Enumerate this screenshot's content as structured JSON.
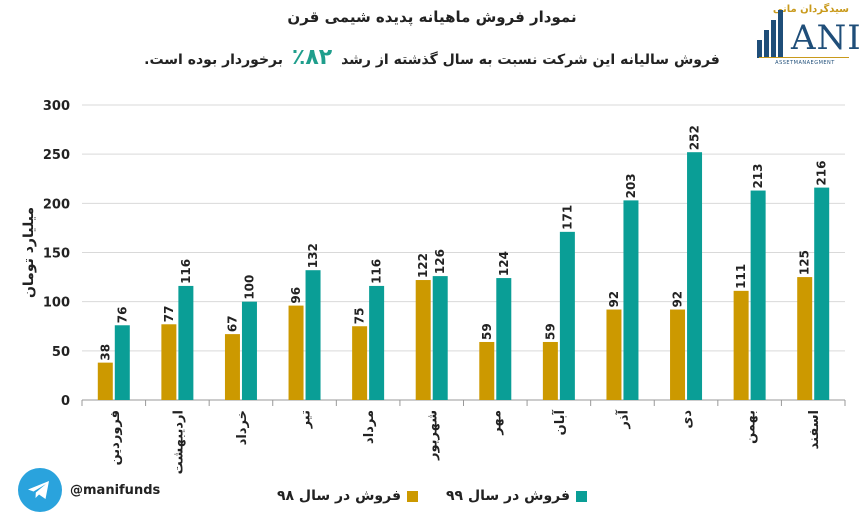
{
  "header": {
    "title": "نمودار فروش ماهیانه پدیده شیمی قرن",
    "subtitle_before": "فروش سالیانه این شرکت نسبت به سال گذشته از رشد",
    "subtitle_pct": "۸۲٪",
    "subtitle_after": "برخوردار بوده است."
  },
  "logo": {
    "top_text": "سیدگردان مانی",
    "letters": "ANI",
    "sub": "ASSETMANAEGMENT"
  },
  "social": {
    "handle": "@manifunds",
    "icon": "telegram-icon"
  },
  "chart_data": {
    "type": "bar",
    "categories": [
      "فروردین",
      "اردیبهشت",
      "خرداد",
      "تیر",
      "مرداد",
      "شهریور",
      "مهر",
      "آبان",
      "آذر",
      "دی",
      "بهمن",
      "اسفند"
    ],
    "series": [
      {
        "name": "فروش در سال ۹۸",
        "values": [
          38,
          77,
          67,
          96,
          75,
          122,
          59,
          59,
          92,
          92,
          111,
          125
        ],
        "color": "#cc9900"
      },
      {
        "name": "فروش در سال ۹۹",
        "values": [
          76,
          116,
          100,
          132,
          116,
          126,
          124,
          171,
          203,
          252,
          213,
          216
        ],
        "color": "#0a9e96"
      }
    ],
    "ylabel": "میلیارد تومان",
    "ylim": [
      0,
      300
    ],
    "yticks": [
      0,
      50,
      100,
      150,
      200,
      250,
      300
    ],
    "grid": true,
    "legend": "bottom"
  }
}
